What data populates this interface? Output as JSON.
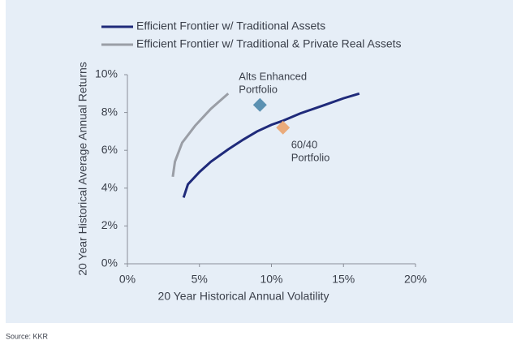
{
  "chart_data": {
    "type": "line",
    "x_label": "20 Year Historical Annual Volatility",
    "y_label": "20 Year Historical Average Annual Returns",
    "source": "Source: KKR",
    "xlim": [
      0,
      20
    ],
    "ylim": [
      0,
      10
    ],
    "xticks": [
      {
        "value": 0,
        "label": "0%"
      },
      {
        "value": 5,
        "label": "5%"
      },
      {
        "value": 10,
        "label": "10%"
      },
      {
        "value": 15,
        "label": "15%"
      },
      {
        "value": 20,
        "label": "20%"
      }
    ],
    "yticks": [
      {
        "value": 0,
        "label": "0%"
      },
      {
        "value": 2,
        "label": "2%"
      },
      {
        "value": 4,
        "label": "4%"
      },
      {
        "value": 6,
        "label": "6%"
      },
      {
        "value": 8,
        "label": "8%"
      },
      {
        "value": 10,
        "label": "10%"
      }
    ],
    "series": [
      {
        "name": "Efficient Frontier w/ Traditional Assets",
        "color": "#1f2a7a",
        "x": [
          3.9,
          4.2,
          5.0,
          5.8,
          7.0,
          8.05,
          9.0,
          10.0,
          10.75,
          12.0,
          13.7,
          15.0,
          16.1
        ],
        "values": [
          3.5,
          4.2,
          4.85,
          5.4,
          6.05,
          6.57,
          7.0,
          7.35,
          7.55,
          7.95,
          8.4,
          8.75,
          9.0
        ]
      },
      {
        "name": "Efficient Frontier w/ Traditional & Private Real Assets",
        "color": "#9a9ea6",
        "x": [
          3.15,
          3.3,
          3.8,
          4.7,
          5.8,
          7.0
        ],
        "values": [
          4.6,
          5.4,
          6.4,
          7.3,
          8.2,
          9.0
        ]
      }
    ],
    "points": [
      {
        "label": [
          "Alts Enhanced",
          "Portfolio"
        ],
        "x": 9.2,
        "y": 8.4,
        "color": "#5b91b2"
      },
      {
        "label": [
          "60/40",
          "Portfolio"
        ],
        "x": 10.8,
        "y": 7.2,
        "color": "#eaab7c"
      }
    ]
  }
}
